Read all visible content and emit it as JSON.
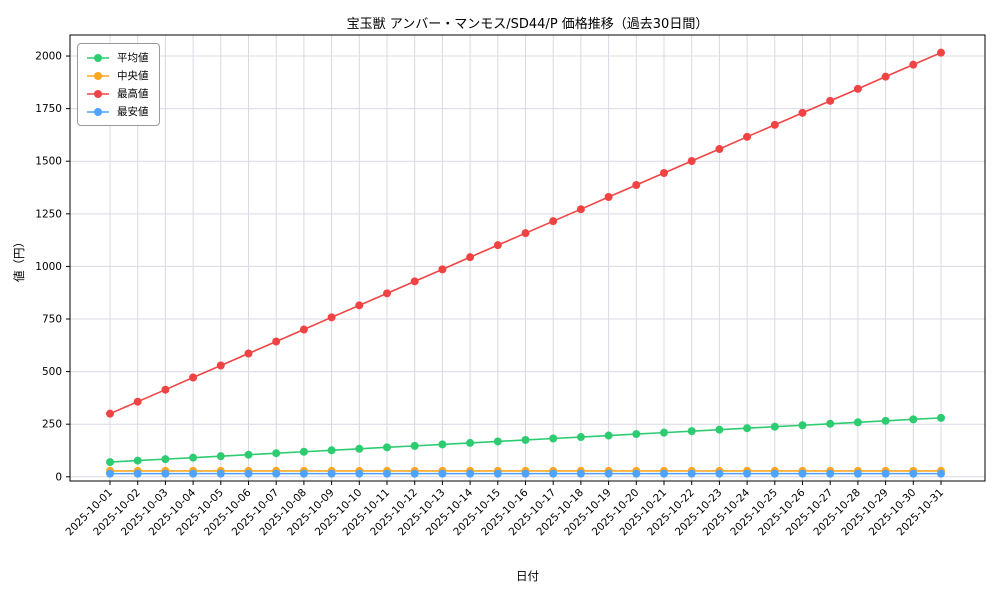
{
  "chart_data": {
    "type": "line",
    "title": "宝玉獣 アンバー・マンモス/SD44/P 価格推移（過去30日間）",
    "xlabel": "日付",
    "ylabel": "値（円）",
    "ylim": [
      -20,
      2100
    ],
    "yticks": [
      0,
      250,
      500,
      750,
      1000,
      1250,
      1500,
      1750,
      2000
    ],
    "grid": true,
    "legend_position": "upper left",
    "categories": [
      "2025-10-01",
      "2025-10-02",
      "2025-10-03",
      "2025-10-04",
      "2025-10-05",
      "2025-10-06",
      "2025-10-07",
      "2025-10-08",
      "2025-10-09",
      "2025-10-10",
      "2025-10-11",
      "2025-10-12",
      "2025-10-13",
      "2025-10-14",
      "2025-10-15",
      "2025-10-16",
      "2025-10-17",
      "2025-10-18",
      "2025-10-19",
      "2025-10-20",
      "2025-10-21",
      "2025-10-22",
      "2025-10-23",
      "2025-10-24",
      "2025-10-25",
      "2025-10-26",
      "2025-10-27",
      "2025-10-28",
      "2025-10-29",
      "2025-10-30",
      "2025-10-31"
    ],
    "series": [
      {
        "name": "平均値",
        "color": "#2ecc71",
        "values": [
          70,
          77,
          84,
          91,
          98,
          105,
          112,
          119,
          126,
          133,
          140,
          147,
          154,
          161,
          168,
          175,
          182,
          189,
          196,
          203,
          210,
          217,
          224,
          231,
          238,
          245,
          252,
          259,
          266,
          273,
          280
        ]
      },
      {
        "name": "中央値",
        "color": "#ffa51e",
        "values": [
          28,
          28,
          28,
          28,
          28,
          28,
          28,
          28,
          28,
          28,
          28,
          28,
          28,
          28,
          28,
          28,
          28,
          28,
          28,
          28,
          28,
          28,
          28,
          28,
          28,
          28,
          28,
          28,
          28,
          28,
          28
        ]
      },
      {
        "name": "最高値",
        "color": "#f04444",
        "values": [
          300,
          357,
          414,
          472,
          529,
          586,
          643,
          700,
          758,
          815,
          872,
          929,
          986,
          1044,
          1101,
          1158,
          1215,
          1272,
          1330,
          1387,
          1444,
          1501,
          1558,
          1616,
          1673,
          1730,
          1787,
          1844,
          1902,
          1959,
          2016
        ]
      },
      {
        "name": "最安値",
        "color": "#4da3ff",
        "values": [
          15,
          15,
          15,
          15,
          15,
          15,
          15,
          15,
          15,
          15,
          15,
          15,
          15,
          15,
          15,
          15,
          15,
          15,
          15,
          15,
          15,
          15,
          15,
          15,
          15,
          15,
          15,
          15,
          15,
          15,
          15
        ]
      }
    ]
  }
}
